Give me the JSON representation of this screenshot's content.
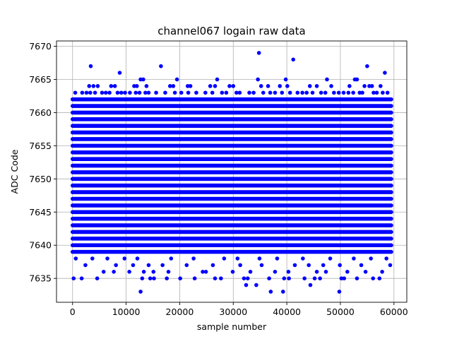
{
  "chart_data": {
    "type": "scatter",
    "title": "channel067 logain raw data",
    "xlabel": "sample number",
    "ylabel": "ADC Code",
    "xlim": [
      -3000,
      62400
    ],
    "ylim": [
      7631.4,
      7670.8
    ],
    "xticks": [
      0,
      10000,
      20000,
      30000,
      40000,
      50000,
      60000
    ],
    "yticks": [
      7635,
      7640,
      7645,
      7650,
      7655,
      7660,
      7665,
      7670
    ],
    "grid": true,
    "marker_color": "#0000ff",
    "x_range": [
      0,
      59500
    ],
    "band": {
      "y_min": 7639,
      "y_max": 7662,
      "step": 1
    },
    "series": [
      {
        "name": "",
        "points": [
          [
            3400,
            7667
          ],
          [
            8800,
            7666
          ],
          [
            16500,
            7667
          ],
          [
            34800,
            7669
          ],
          [
            41200,
            7668
          ],
          [
            55000,
            7667
          ],
          [
            58300,
            7666
          ],
          [
            12700,
            7665
          ],
          [
            13200,
            7665
          ],
          [
            19500,
            7665
          ],
          [
            27000,
            7665
          ],
          [
            34600,
            7665
          ],
          [
            39800,
            7665
          ],
          [
            47500,
            7665
          ],
          [
            52700,
            7665
          ],
          [
            53100,
            7665
          ],
          [
            3100,
            7664
          ],
          [
            3900,
            7664
          ],
          [
            4700,
            7664
          ],
          [
            7200,
            7664
          ],
          [
            7900,
            7664
          ],
          [
            11500,
            7664
          ],
          [
            12000,
            7664
          ],
          [
            13800,
            7664
          ],
          [
            18200,
            7664
          ],
          [
            18800,
            7664
          ],
          [
            21500,
            7664
          ],
          [
            22000,
            7664
          ],
          [
            25700,
            7664
          ],
          [
            26600,
            7664
          ],
          [
            29300,
            7664
          ],
          [
            30000,
            7664
          ],
          [
            35200,
            7664
          ],
          [
            36500,
            7664
          ],
          [
            38700,
            7664
          ],
          [
            40100,
            7664
          ],
          [
            44300,
            7664
          ],
          [
            45600,
            7664
          ],
          [
            48300,
            7664
          ],
          [
            51700,
            7664
          ],
          [
            54500,
            7664
          ],
          [
            55400,
            7664
          ],
          [
            55900,
            7664
          ],
          [
            57500,
            7664
          ],
          [
            500,
            7663
          ],
          [
            1800,
            7663
          ],
          [
            2600,
            7663
          ],
          [
            3300,
            7663
          ],
          [
            4200,
            7663
          ],
          [
            5500,
            7663
          ],
          [
            6200,
            7663
          ],
          [
            6900,
            7663
          ],
          [
            8400,
            7663
          ],
          [
            9100,
            7663
          ],
          [
            9800,
            7663
          ],
          [
            10700,
            7663
          ],
          [
            11800,
            7663
          ],
          [
            12500,
            7663
          ],
          [
            13600,
            7663
          ],
          [
            14200,
            7663
          ],
          [
            15600,
            7663
          ],
          [
            17300,
            7663
          ],
          [
            19100,
            7663
          ],
          [
            20300,
            7663
          ],
          [
            21600,
            7663
          ],
          [
            23100,
            7663
          ],
          [
            24800,
            7663
          ],
          [
            26100,
            7663
          ],
          [
            27900,
            7663
          ],
          [
            28700,
            7663
          ],
          [
            30600,
            7663
          ],
          [
            31200,
            7663
          ],
          [
            33000,
            7663
          ],
          [
            33800,
            7663
          ],
          [
            35600,
            7663
          ],
          [
            36900,
            7663
          ],
          [
            37800,
            7663
          ],
          [
            39100,
            7663
          ],
          [
            40600,
            7663
          ],
          [
            42000,
            7663
          ],
          [
            42900,
            7663
          ],
          [
            43700,
            7663
          ],
          [
            44800,
            7663
          ],
          [
            46400,
            7663
          ],
          [
            47200,
            7663
          ],
          [
            48800,
            7663
          ],
          [
            49700,
            7663
          ],
          [
            50600,
            7663
          ],
          [
            51500,
            7663
          ],
          [
            52400,
            7663
          ],
          [
            53600,
            7663
          ],
          [
            54100,
            7663
          ],
          [
            56200,
            7663
          ],
          [
            56800,
            7663
          ],
          [
            57900,
            7663
          ],
          [
            58800,
            7663
          ],
          [
            200,
            7635
          ],
          [
            1700,
            7635
          ],
          [
            4600,
            7635
          ],
          [
            13000,
            7635
          ],
          [
            14500,
            7635
          ],
          [
            15200,
            7635
          ],
          [
            17600,
            7635
          ],
          [
            20100,
            7635
          ],
          [
            22800,
            7635
          ],
          [
            26600,
            7635
          ],
          [
            27700,
            7635
          ],
          [
            32000,
            7635
          ],
          [
            32700,
            7635
          ],
          [
            36700,
            7635
          ],
          [
            39500,
            7635
          ],
          [
            40400,
            7635
          ],
          [
            43300,
            7635
          ],
          [
            45200,
            7635
          ],
          [
            46200,
            7635
          ],
          [
            50200,
            7635
          ],
          [
            50700,
            7635
          ],
          [
            53100,
            7635
          ],
          [
            56100,
            7635
          ],
          [
            57300,
            7635
          ],
          [
            32400,
            7634
          ],
          [
            34300,
            7634
          ],
          [
            44400,
            7634
          ],
          [
            12700,
            7633
          ],
          [
            37000,
            7633
          ],
          [
            39300,
            7633
          ],
          [
            49800,
            7633
          ],
          [
            5800,
            7636
          ],
          [
            7700,
            7636
          ],
          [
            10600,
            7636
          ],
          [
            13300,
            7636
          ],
          [
            15100,
            7636
          ],
          [
            17900,
            7636
          ],
          [
            24300,
            7636
          ],
          [
            24900,
            7636
          ],
          [
            29900,
            7636
          ],
          [
            33200,
            7636
          ],
          [
            37800,
            7636
          ],
          [
            40300,
            7636
          ],
          [
            45600,
            7636
          ],
          [
            47300,
            7636
          ],
          [
            51300,
            7636
          ],
          [
            54700,
            7636
          ],
          [
            57800,
            7636
          ],
          [
            2400,
            7637
          ],
          [
            8100,
            7637
          ],
          [
            11300,
            7637
          ],
          [
            14200,
            7637
          ],
          [
            16800,
            7637
          ],
          [
            21300,
            7637
          ],
          [
            26200,
            7637
          ],
          [
            31300,
            7637
          ],
          [
            35300,
            7637
          ],
          [
            41500,
            7637
          ],
          [
            44100,
            7637
          ],
          [
            46800,
            7637
          ],
          [
            49900,
            7637
          ],
          [
            53900,
            7637
          ],
          [
            59300,
            7637
          ],
          [
            600,
            7638
          ],
          [
            3700,
            7638
          ],
          [
            6500,
            7638
          ],
          [
            9700,
            7638
          ],
          [
            12100,
            7638
          ],
          [
            18400,
            7638
          ],
          [
            22600,
            7638
          ],
          [
            28300,
            7638
          ],
          [
            30800,
            7638
          ],
          [
            34900,
            7638
          ],
          [
            38200,
            7638
          ],
          [
            43000,
            7638
          ],
          [
            48100,
            7638
          ],
          [
            52500,
            7638
          ],
          [
            55700,
            7638
          ],
          [
            58600,
            7638
          ]
        ]
      }
    ]
  }
}
